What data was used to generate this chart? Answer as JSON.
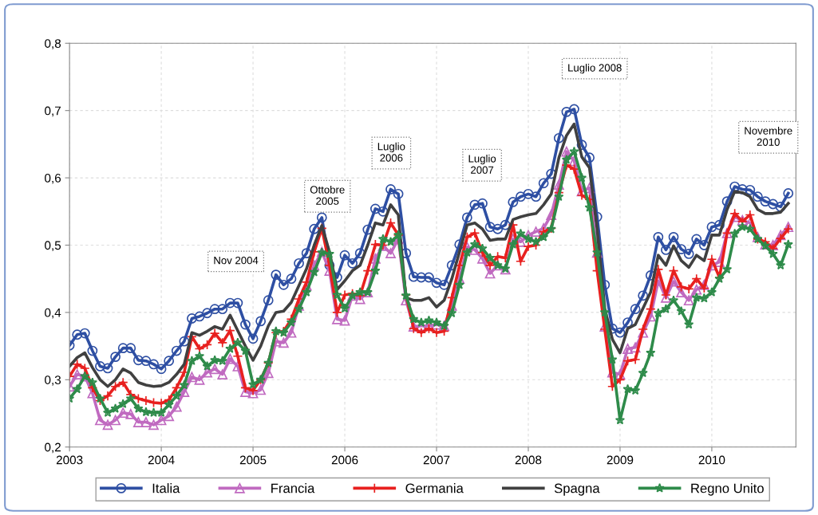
{
  "chart_data": {
    "type": "line",
    "x": [
      "2003-01",
      "2003-02",
      "2003-03",
      "2003-04",
      "2003-05",
      "2003-06",
      "2003-07",
      "2003-08",
      "2003-09",
      "2003-10",
      "2003-11",
      "2003-12",
      "2004-01",
      "2004-02",
      "2004-03",
      "2004-04",
      "2004-05",
      "2004-06",
      "2004-07",
      "2004-08",
      "2004-09",
      "2004-10",
      "2004-11",
      "2004-12",
      "2005-01",
      "2005-02",
      "2005-03",
      "2005-04",
      "2005-05",
      "2005-06",
      "2005-07",
      "2005-08",
      "2005-09",
      "2005-10",
      "2005-11",
      "2005-12",
      "2006-01",
      "2006-02",
      "2006-03",
      "2006-04",
      "2006-05",
      "2006-06",
      "2006-07",
      "2006-08",
      "2006-09",
      "2006-10",
      "2006-11",
      "2006-12",
      "2007-01",
      "2007-02",
      "2007-03",
      "2007-04",
      "2007-05",
      "2007-06",
      "2007-07",
      "2007-08",
      "2007-09",
      "2007-10",
      "2007-11",
      "2007-12",
      "2008-01",
      "2008-02",
      "2008-03",
      "2008-04",
      "2008-05",
      "2008-06",
      "2008-07",
      "2008-08",
      "2008-09",
      "2008-10",
      "2008-11",
      "2008-12",
      "2009-01",
      "2009-02",
      "2009-03",
      "2009-04",
      "2009-05",
      "2009-06",
      "2009-07",
      "2009-08",
      "2009-09",
      "2009-10",
      "2009-11",
      "2009-12",
      "2010-01",
      "2010-02",
      "2010-03",
      "2010-04",
      "2010-05",
      "2010-06",
      "2010-07",
      "2010-08",
      "2010-09",
      "2010-10",
      "2010-11"
    ],
    "xlim": [
      "2003-01",
      "2010-12"
    ],
    "xticks": [
      {
        "value": "2003",
        "label": "2003"
      },
      {
        "value": "2004",
        "label": "2004"
      },
      {
        "value": "2005",
        "label": "2005"
      },
      {
        "value": "2006",
        "label": "2006"
      },
      {
        "value": "2007",
        "label": "2007"
      },
      {
        "value": "2008",
        "label": "2008"
      },
      {
        "value": "2009",
        "label": "2009"
      },
      {
        "value": "2010",
        "label": "2010"
      }
    ],
    "ylim": [
      0.2,
      0.8
    ],
    "yticks": [
      {
        "value": 0.2,
        "label": "0,2"
      },
      {
        "value": 0.3,
        "label": "0,3"
      },
      {
        "value": 0.4,
        "label": "0,4"
      },
      {
        "value": 0.5,
        "label": "0,5"
      },
      {
        "value": 0.6,
        "label": "0,6"
      },
      {
        "value": 0.7,
        "label": "0,7"
      },
      {
        "value": 0.8,
        "label": "0,8"
      }
    ],
    "grid": true,
    "legend": "bottom",
    "line_style": "solid",
    "series": [
      {
        "name": "Italia",
        "color": "#2e4fa3",
        "marker": "circle",
        "values": [
          0.351,
          0.367,
          0.369,
          0.343,
          0.32,
          0.317,
          0.334,
          0.347,
          0.347,
          0.329,
          0.328,
          0.323,
          0.316,
          0.328,
          0.343,
          0.357,
          0.391,
          0.394,
          0.399,
          0.405,
          0.405,
          0.414,
          0.414,
          0.382,
          0.361,
          0.387,
          0.418,
          0.456,
          0.441,
          0.45,
          0.473,
          0.488,
          0.524,
          0.541,
          0.47,
          0.452,
          0.485,
          0.473,
          0.488,
          0.523,
          0.554,
          0.55,
          0.583,
          0.576,
          0.488,
          0.453,
          0.452,
          0.452,
          0.444,
          0.441,
          0.47,
          0.501,
          0.541,
          0.56,
          0.562,
          0.527,
          0.524,
          0.53,
          0.564,
          0.572,
          0.576,
          0.572,
          0.592,
          0.606,
          0.659,
          0.698,
          0.702,
          0.649,
          0.63,
          0.542,
          0.441,
          0.376,
          0.37,
          0.385,
          0.405,
          0.425,
          0.455,
          0.512,
          0.493,
          0.512,
          0.494,
          0.487,
          0.509,
          0.5,
          0.527,
          0.53,
          0.565,
          0.587,
          0.583,
          0.582,
          0.572,
          0.565,
          0.561,
          0.557,
          0.577
        ]
      },
      {
        "name": "Francia",
        "color": "#c06ac0",
        "marker": "triangle",
        "values": [
          0.29,
          0.308,
          0.305,
          0.28,
          0.24,
          0.233,
          0.24,
          0.251,
          0.249,
          0.237,
          0.237,
          0.233,
          0.24,
          0.246,
          0.26,
          0.282,
          0.304,
          0.3,
          0.311,
          0.316,
          0.308,
          0.331,
          0.32,
          0.282,
          0.28,
          0.285,
          0.31,
          0.357,
          0.355,
          0.37,
          0.41,
          0.44,
          0.47,
          0.49,
          0.462,
          0.39,
          0.388,
          0.425,
          0.42,
          0.43,
          0.48,
          0.499,
          0.488,
          0.509,
          0.418,
          0.379,
          0.38,
          0.38,
          0.382,
          0.38,
          0.41,
          0.45,
          0.497,
          0.493,
          0.48,
          0.458,
          0.47,
          0.464,
          0.509,
          0.505,
          0.515,
          0.52,
          0.525,
          0.545,
          0.59,
          0.639,
          0.625,
          0.58,
          0.585,
          0.489,
          0.379,
          0.311,
          0.308,
          0.346,
          0.348,
          0.37,
          0.394,
          0.447,
          0.422,
          0.446,
          0.43,
          0.418,
          0.434,
          0.441,
          0.47,
          0.475,
          0.518,
          0.542,
          0.537,
          0.533,
          0.512,
          0.501,
          0.5,
          0.515,
          0.527
        ]
      },
      {
        "name": "Germania",
        "color": "#e8201f",
        "marker": "cross",
        "values": [
          0.305,
          0.323,
          0.317,
          0.288,
          0.269,
          0.276,
          0.29,
          0.296,
          0.278,
          0.272,
          0.269,
          0.266,
          0.265,
          0.27,
          0.288,
          0.311,
          0.364,
          0.346,
          0.352,
          0.369,
          0.355,
          0.373,
          0.335,
          0.288,
          0.284,
          0.3,
          0.325,
          0.37,
          0.372,
          0.39,
          0.42,
          0.445,
          0.49,
          0.525,
          0.47,
          0.4,
          0.426,
          0.428,
          0.425,
          0.462,
          0.501,
          0.5,
          0.533,
          0.515,
          0.426,
          0.376,
          0.37,
          0.376,
          0.37,
          0.372,
          0.422,
          0.47,
          0.512,
          0.518,
          0.489,
          0.47,
          0.483,
          0.481,
          0.53,
          0.476,
          0.498,
          0.5,
          0.52,
          0.525,
          0.578,
          0.619,
          0.613,
          0.574,
          0.568,
          0.462,
          0.375,
          0.29,
          0.3,
          0.328,
          0.33,
          0.375,
          0.405,
          0.464,
          0.426,
          0.462,
          0.438,
          0.435,
          0.45,
          0.436,
          0.479,
          0.452,
          0.518,
          0.547,
          0.535,
          0.545,
          0.509,
          0.505,
          0.495,
          0.51,
          0.524
        ]
      },
      {
        "name": "Spagna",
        "color": "#404040",
        "marker": "none",
        "values": [
          0.32,
          0.333,
          0.34,
          0.318,
          0.3,
          0.29,
          0.3,
          0.316,
          0.31,
          0.296,
          0.292,
          0.29,
          0.291,
          0.296,
          0.308,
          0.323,
          0.37,
          0.366,
          0.372,
          0.379,
          0.375,
          0.396,
          0.373,
          0.35,
          0.329,
          0.35,
          0.38,
          0.4,
          0.402,
          0.415,
          0.44,
          0.465,
          0.5,
          0.529,
          0.49,
          0.434,
          0.447,
          0.462,
          0.47,
          0.5,
          0.533,
          0.53,
          0.56,
          0.545,
          0.422,
          0.418,
          0.418,
          0.422,
          0.408,
          0.418,
          0.45,
          0.49,
          0.53,
          0.533,
          0.524,
          0.507,
          0.509,
          0.509,
          0.538,
          0.542,
          0.545,
          0.547,
          0.56,
          0.576,
          0.63,
          0.663,
          0.68,
          0.631,
          0.615,
          0.524,
          0.406,
          0.36,
          0.34,
          0.376,
          0.382,
          0.406,
          0.43,
          0.485,
          0.47,
          0.499,
          0.477,
          0.467,
          0.485,
          0.477,
          0.515,
          0.515,
          0.553,
          0.58,
          0.578,
          0.572,
          0.553,
          0.547,
          0.547,
          0.549,
          0.562
        ]
      },
      {
        "name": "Regno Unito",
        "color": "#2e8b4a",
        "marker": "star",
        "values": [
          0.272,
          0.286,
          0.305,
          0.296,
          0.272,
          0.251,
          0.257,
          0.264,
          0.272,
          0.257,
          0.252,
          0.251,
          0.251,
          0.263,
          0.276,
          0.292,
          0.328,
          0.335,
          0.32,
          0.329,
          0.328,
          0.346,
          0.355,
          0.343,
          0.293,
          0.3,
          0.325,
          0.372,
          0.37,
          0.385,
          0.405,
          0.43,
          0.46,
          0.489,
          0.487,
          0.426,
          0.406,
          0.425,
          0.43,
          0.43,
          0.462,
          0.509,
          0.505,
          0.515,
          0.425,
          0.39,
          0.385,
          0.388,
          0.385,
          0.38,
          0.399,
          0.441,
          0.489,
          0.501,
          0.495,
          0.481,
          0.47,
          0.465,
          0.501,
          0.517,
          0.509,
          0.505,
          0.512,
          0.524,
          0.572,
          0.627,
          0.639,
          0.6,
          0.556,
          0.489,
          0.4,
          0.33,
          0.24,
          0.286,
          0.284,
          0.31,
          0.34,
          0.399,
          0.405,
          0.418,
          0.402,
          0.382,
          0.422,
          0.421,
          0.43,
          0.45,
          0.464,
          0.517,
          0.527,
          0.524,
          0.509,
          0.499,
          0.487,
          0.47,
          0.501
        ]
      }
    ],
    "annotations": [
      "Nov 2004",
      "Ottobre\n2005",
      "Luglio\n2006",
      "Luglio\n2007",
      "Luglio 2008",
      "Novembre\n2010"
    ]
  }
}
